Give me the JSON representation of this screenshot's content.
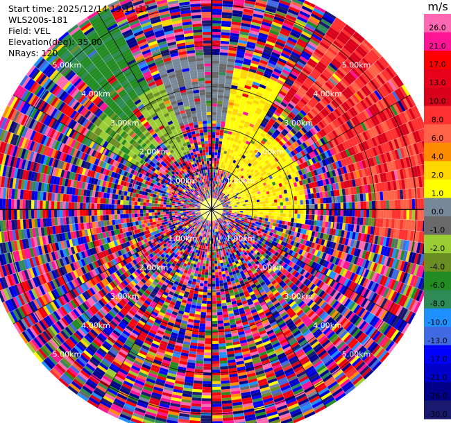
{
  "header": {
    "start_time": "Start time: 2025/12/14 19:11:17",
    "site": "WLS200s-181",
    "field": "Field: VEL",
    "elevation": "Elevation(deg): 35.00",
    "nrays": "NRays: 120"
  },
  "chart_data": {
    "type": "heatmap",
    "projection": "polar",
    "title": "",
    "field": "VEL",
    "n_rays": 120,
    "range_rings_km": [
      1.0,
      2.0,
      3.0,
      4.0,
      5.0
    ],
    "ring_labels": [
      "1.00km",
      "2.00km",
      "3.00km",
      "4.00km",
      "5.00km"
    ],
    "spoke_angles_deg": [
      0,
      30,
      60,
      90,
      120,
      150,
      180,
      210,
      240,
      270,
      300,
      330
    ],
    "max_range_km": 5.6,
    "colorbar": {
      "unit": "m/s",
      "ticks": [
        "26.0",
        "21.0",
        "17.0",
        "13.0",
        "10.0",
        "8.0",
        "6.0",
        "4.0",
        "2.0",
        "1.0",
        "0.0",
        "-1.0",
        "-2.0",
        "-4.0",
        "-6.0",
        "-8.0",
        "-10.0",
        "-13.0",
        "-17.0",
        "-21.0",
        "-26.0",
        "-30.0"
      ],
      "bins": [
        {
          "low": 26,
          "high": 30,
          "color": "#ff69b4"
        },
        {
          "low": 21,
          "high": 26,
          "color": "#ff1493"
        },
        {
          "low": 17,
          "high": 21,
          "color": "#ff0000"
        },
        {
          "low": 13,
          "high": 17,
          "color": "#e8001a"
        },
        {
          "low": 10,
          "high": 13,
          "color": "#d9001b"
        },
        {
          "low": 8,
          "high": 10,
          "color": "#ff3030"
        },
        {
          "low": 6,
          "high": 8,
          "color": "#ff6347"
        },
        {
          "low": 4,
          "high": 6,
          "color": "#ff8c00"
        },
        {
          "low": 2,
          "high": 4,
          "color": "#ffd700"
        },
        {
          "low": 1,
          "high": 2,
          "color": "#ffff00"
        },
        {
          "low": 0,
          "high": 1,
          "color": "#778899"
        },
        {
          "low": -1,
          "high": 0,
          "color": "#696969"
        },
        {
          "low": -2,
          "high": -1,
          "color": "#9acd32"
        },
        {
          "low": -4,
          "high": -2,
          "color": "#6b8e23"
        },
        {
          "low": -6,
          "high": -4,
          "color": "#228b22"
        },
        {
          "low": -8,
          "high": -6,
          "color": "#2e8b57"
        },
        {
          "low": -10,
          "high": -8,
          "color": "#1e90ff"
        },
        {
          "low": -13,
          "high": -10,
          "color": "#4169e1"
        },
        {
          "low": -17,
          "high": -13,
          "color": "#0000ff"
        },
        {
          "low": -21,
          "high": -17,
          "color": "#0000cd"
        },
        {
          "low": -26,
          "high": -21,
          "color": "#00008b"
        },
        {
          "low": -30,
          "high": -26,
          "color": "#191970"
        }
      ]
    },
    "coherent_sectors": [
      {
        "az_from": 32,
        "az_to": 85,
        "r_from_km": 3.3,
        "r_to_km": 5.6,
        "values": [
          8.5,
          9,
          7,
          11,
          10
        ]
      },
      {
        "az_from": 85,
        "az_to": 100,
        "r_from_km": 4.0,
        "r_to_km": 5.6,
        "values": [
          7,
          9
        ]
      },
      {
        "az_from": 10,
        "az_to": 30,
        "r_from_km": 1.0,
        "r_to_km": 3.5,
        "values": [
          1.5,
          2.5,
          1.2
        ]
      },
      {
        "az_from": 30,
        "az_to": 100,
        "r_from_km": 0.5,
        "r_to_km": 2.3,
        "values": [
          1.5,
          1.2,
          2.5
        ]
      },
      {
        "az_from": 340,
        "az_to": 8,
        "r_from_km": 2.2,
        "r_to_km": 3.8,
        "values": [
          0.5,
          -0.5,
          0.3
        ]
      },
      {
        "az_from": 325,
        "az_to": 340,
        "r_from_km": 1.5,
        "r_to_km": 3.3,
        "values": [
          -1.5,
          -3,
          -1.2
        ]
      },
      {
        "az_from": 315,
        "az_to": 333,
        "r_from_km": 3.0,
        "r_to_km": 5.5,
        "values": [
          -5,
          -7,
          -6
        ]
      },
      {
        "az_from": 300,
        "az_to": 322,
        "r_from_km": 2.0,
        "r_to_km": 3.6,
        "values": [
          -3,
          -1.5,
          -5
        ]
      }
    ]
  }
}
